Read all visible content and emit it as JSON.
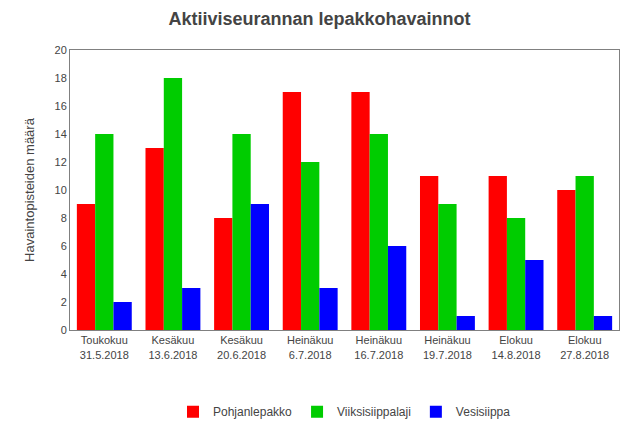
{
  "chart_data": {
    "type": "bar",
    "title": "Aktiiviseurannan lepakkohavainnot",
    "ylabel": "Havaintopisteiden määrä",
    "categories": [
      "Toukokuu\n31.5.2018",
      "Kesäkuu\n13.6.2018",
      "Kesäkuu\n20.6.2018",
      "Heinäkuu\n6.7.2018",
      "Heinäkuu\n16.7.2018",
      "Heinäkuu\n19.7.2018",
      "Elokuu\n14.8.2018",
      "Elokuu\n27.8.2018"
    ],
    "series": [
      {
        "name": "Pohjanlepakko",
        "color": "#FF0000",
        "values": [
          9,
          13,
          8,
          17,
          17,
          11,
          11,
          10
        ]
      },
      {
        "name": "Viiksisiippalaji",
        "color": "#00CC00",
        "values": [
          14,
          18,
          14,
          12,
          14,
          9,
          8,
          11
        ]
      },
      {
        "name": "Vesisiippa",
        "color": "#0000FF",
        "values": [
          2,
          3,
          9,
          3,
          6,
          1,
          5,
          1
        ]
      }
    ],
    "ylim": [
      0,
      20
    ],
    "yticks": [
      0,
      2,
      4,
      6,
      8,
      10,
      12,
      14,
      16,
      18,
      20
    ],
    "grid": false,
    "legend": "bottom"
  }
}
